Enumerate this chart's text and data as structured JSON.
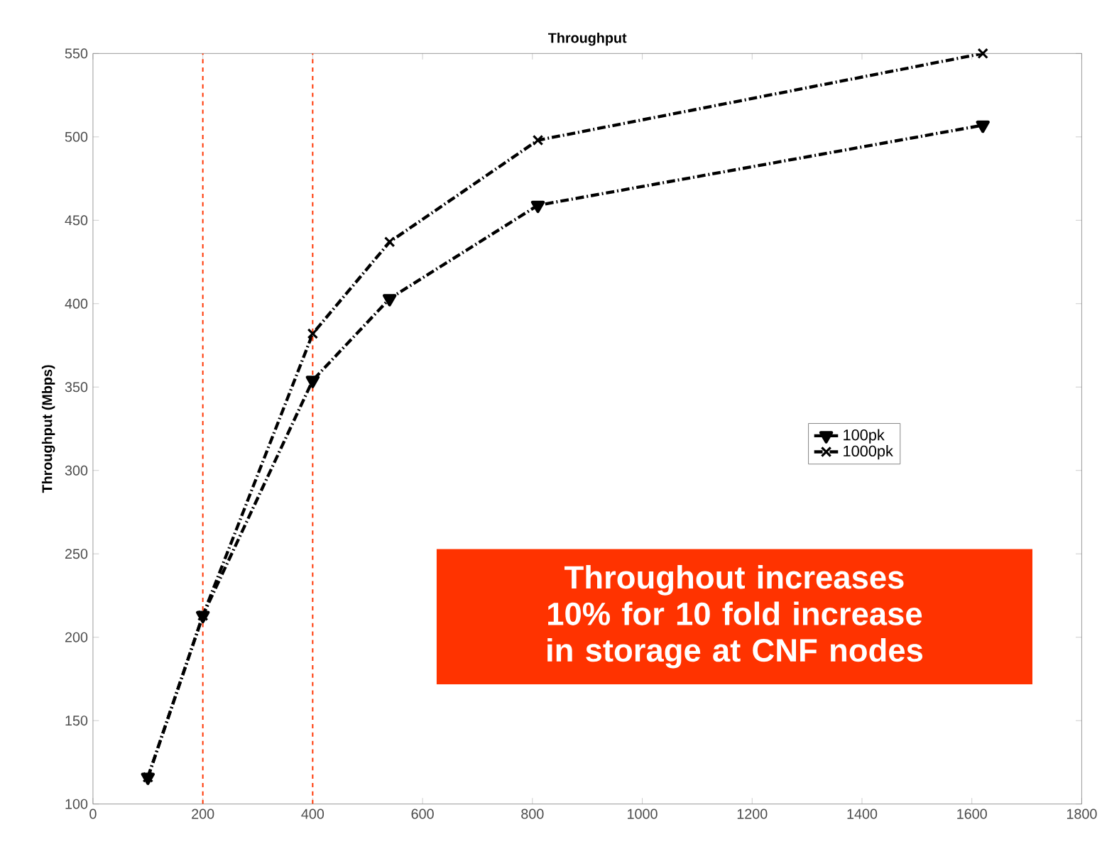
{
  "chart_data": {
    "type": "line",
    "title": "Throughput",
    "ylabel": "Throughput (Mbps)",
    "x": [
      100,
      200,
      400,
      540,
      810,
      1620
    ],
    "series": [
      {
        "name": "100pk",
        "color": "#000000",
        "marker": "triangle",
        "values": [
          116,
          213,
          354,
          403,
          459,
          507
        ]
      },
      {
        "name": "1000pk",
        "color": "#000000",
        "marker": "cross",
        "values": [
          116,
          213,
          382,
          437,
          498,
          550
        ]
      }
    ],
    "line_style": "dashed",
    "xlim": [
      0,
      1800
    ],
    "xticks": [
      0,
      200,
      400,
      600,
      800,
      1000,
      1200,
      1400,
      1600,
      1800
    ],
    "ylim": [
      100,
      550
    ],
    "yticks": [
      100,
      150,
      200,
      250,
      300,
      350,
      400,
      450,
      500,
      550
    ],
    "ref_lines": [
      {
        "axis": "x",
        "value": 200,
        "color": "#ff3300",
        "line_style": "dashed"
      },
      {
        "axis": "x",
        "value": 400,
        "color": "#ff3300",
        "line_style": "dashed"
      }
    ],
    "annotations": [
      "Throughout increases 10% for 10 fold increase in storage at CNF nodes"
    ],
    "grid": false,
    "legend": "right"
  }
}
